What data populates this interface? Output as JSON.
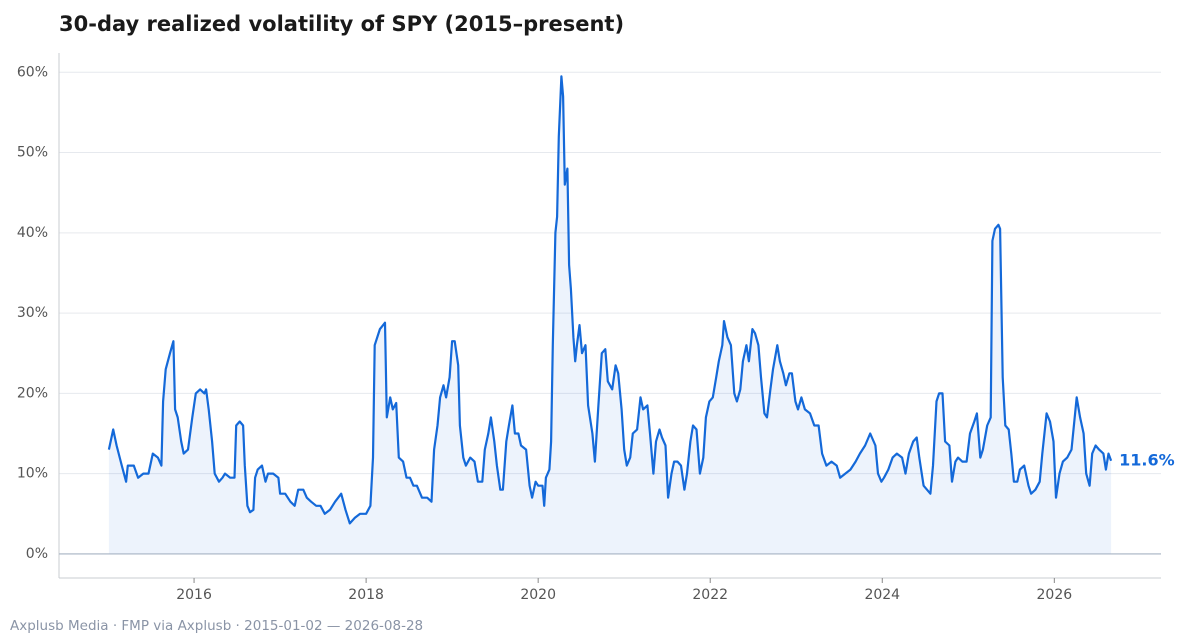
{
  "chart_data": {
    "type": "line",
    "title": "30-day realized volatility of SPY (2015–present)",
    "footer": "Axplusb Media · FMP via Axplusb · 2015-01-02 — 2026-08-28",
    "color": "#1469d9",
    "area": true,
    "grid": true,
    "xlim": [
      2014.43,
      2027.24
    ],
    "xticks": [
      2016,
      2018,
      2020,
      2022,
      2024,
      2026
    ],
    "ylim": [
      -3,
      62.4
    ],
    "yticks": [
      {
        "value": 0,
        "label": "0%"
      },
      {
        "value": 10,
        "label": "10%"
      },
      {
        "value": 20,
        "label": "20%"
      },
      {
        "value": 30,
        "label": "30%"
      },
      {
        "value": 40,
        "label": "40%"
      },
      {
        "value": 50,
        "label": "50%"
      },
      {
        "value": 60,
        "label": "60%"
      }
    ],
    "x": [
      2015.01,
      2015.06,
      2015.1,
      2015.16,
      2015.21,
      2015.23,
      2015.3,
      2015.35,
      2015.41,
      2015.47,
      2015.52,
      2015.58,
      2015.62,
      2015.64,
      2015.67,
      2015.72,
      2015.76,
      2015.78,
      2015.81,
      2015.85,
      2015.88,
      2015.93,
      2015.98,
      2016.02,
      2016.07,
      2016.12,
      2016.14,
      2016.17,
      2016.21,
      2016.24,
      2016.29,
      2016.33,
      2016.36,
      2016.42,
      2016.47,
      2016.49,
      2016.53,
      2016.57,
      2016.59,
      2016.62,
      2016.65,
      2016.69,
      2016.71,
      2016.74,
      2016.79,
      2016.83,
      2016.86,
      2016.92,
      2016.98,
      2017.0,
      2017.06,
      2017.12,
      2017.17,
      2017.21,
      2017.27,
      2017.31,
      2017.36,
      2017.42,
      2017.47,
      2017.52,
      2017.58,
      2017.64,
      2017.71,
      2017.76,
      2017.81,
      2017.87,
      2017.93,
      2018.0,
      2018.05,
      2018.08,
      2018.1,
      2018.16,
      2018.22,
      2018.24,
      2018.28,
      2018.31,
      2018.35,
      2018.38,
      2018.43,
      2018.47,
      2018.51,
      2018.55,
      2018.59,
      2018.65,
      2018.71,
      2018.76,
      2018.79,
      2018.83,
      2018.86,
      2018.9,
      2018.93,
      2018.97,
      2019.0,
      2019.03,
      2019.07,
      2019.09,
      2019.13,
      2019.16,
      2019.21,
      2019.26,
      2019.3,
      2019.35,
      2019.38,
      2019.42,
      2019.45,
      2019.49,
      2019.52,
      2019.56,
      2019.59,
      2019.63,
      2019.66,
      2019.7,
      2019.73,
      2019.77,
      2019.8,
      2019.86,
      2019.9,
      2019.93,
      2019.97,
      2020.0,
      2020.05,
      2020.07,
      2020.09,
      2020.13,
      2020.15,
      2020.17,
      2020.2,
      2020.22,
      2020.24,
      2020.27,
      2020.29,
      2020.31,
      2020.34,
      2020.36,
      2020.38,
      2020.41,
      2020.43,
      2020.45,
      2020.48,
      2020.51,
      2020.55,
      2020.58,
      2020.63,
      2020.66,
      2020.7,
      2020.74,
      2020.78,
      2020.81,
      2020.86,
      2020.9,
      2020.93,
      2020.97,
      2021.0,
      2021.03,
      2021.07,
      2021.1,
      2021.15,
      2021.19,
      2021.22,
      2021.27,
      2021.3,
      2021.34,
      2021.37,
      2021.41,
      2021.44,
      2021.48,
      2021.51,
      2021.55,
      2021.58,
      2021.62,
      2021.66,
      2021.7,
      2021.73,
      2021.77,
      2021.8,
      2021.84,
      2021.88,
      2021.92,
      2021.95,
      2021.99,
      2022.03,
      2022.07,
      2022.1,
      2022.14,
      2022.16,
      2022.2,
      2022.24,
      2022.28,
      2022.31,
      2022.35,
      2022.38,
      2022.42,
      2022.45,
      2022.49,
      2022.52,
      2022.56,
      2022.59,
      2022.63,
      2022.66,
      2022.7,
      2022.73,
      2022.78,
      2022.81,
      2022.85,
      2022.88,
      2022.92,
      2022.95,
      2022.99,
      2023.02,
      2023.06,
      2023.1,
      2023.16,
      2023.21,
      2023.26,
      2023.3,
      2023.35,
      2023.41,
      2023.47,
      2023.51,
      2023.57,
      2023.63,
      2023.69,
      2023.74,
      2023.8,
      2023.86,
      2023.92,
      2023.95,
      2023.99,
      2024.02,
      2024.07,
      2024.12,
      2024.17,
      2024.23,
      2024.27,
      2024.31,
      2024.36,
      2024.4,
      2024.43,
      2024.48,
      2024.52,
      2024.56,
      2024.59,
      2024.63,
      2024.66,
      2024.7,
      2024.73,
      2024.78,
      2024.81,
      2024.85,
      2024.88,
      2024.93,
      2024.98,
      2025.02,
      2025.07,
      2025.1,
      2025.14,
      2025.17,
      2025.22,
      2025.26,
      2025.28,
      2025.31,
      2025.35,
      2025.37,
      2025.4,
      2025.43,
      2025.47,
      2025.5,
      2025.53,
      2025.57,
      2025.6,
      2025.65,
      2025.7,
      2025.73,
      2025.78,
      2025.83,
      2025.86,
      2025.91,
      2025.95,
      2025.99,
      2026.02,
      2026.06,
      2026.1,
      2026.15,
      2026.2,
      2026.26,
      2026.3,
      2026.34,
      2026.37,
      2026.41,
      2026.44,
      2026.48,
      2026.52,
      2026.57,
      2026.6,
      2026.63,
      2026.66
    ],
    "values": [
      13,
      15.5,
      13.5,
      11,
      9,
      11,
      11,
      9.5,
      10,
      10,
      12.5,
      12,
      11,
      19,
      23,
      25,
      26.5,
      18,
      17,
      14,
      12.5,
      13,
      17,
      20,
      20.5,
      20,
      20.5,
      18,
      14,
      10,
      9,
      9.5,
      10,
      9.5,
      9.5,
      16,
      16.5,
      16,
      11,
      6,
      5.2,
      5.5,
      9.5,
      10.5,
      11,
      9,
      10,
      10,
      9.5,
      7.5,
      7.5,
      6.5,
      6,
      8,
      8,
      7,
      6.5,
      6,
      6,
      5,
      5.5,
      6.5,
      7.5,
      5.5,
      3.8,
      4.5,
      5,
      5,
      6,
      12,
      26,
      28,
      28.8,
      17,
      19.5,
      18,
      18.8,
      12,
      11.5,
      9.5,
      9.5,
      8.5,
      8.5,
      7,
      7,
      6.5,
      13,
      16,
      19.5,
      21,
      19.5,
      22,
      26.5,
      26.5,
      23.5,
      16,
      12,
      11,
      12,
      11.5,
      9,
      9,
      13,
      15,
      17,
      14,
      11,
      8,
      8,
      14,
      16,
      18.5,
      15,
      15,
      13.5,
      13,
      8.5,
      7,
      9,
      8.5,
      8.5,
      6,
      9.5,
      10.5,
      14,
      26,
      40,
      42,
      52,
      59.5,
      57,
      46,
      48,
      36,
      33,
      27,
      24,
      26,
      28.5,
      25,
      26,
      18.5,
      15,
      11.5,
      18.5,
      25,
      25.5,
      21.5,
      20.5,
      23.5,
      22.5,
      18,
      13,
      11,
      12,
      15,
      15.5,
      19.5,
      18,
      18.5,
      15,
      10,
      14,
      15.5,
      14.5,
      13.5,
      7,
      10,
      11.5,
      11.5,
      11,
      8,
      10,
      14,
      16,
      15.5,
      10,
      12,
      17,
      19,
      19.5,
      22,
      24,
      26,
      29,
      27,
      26,
      20,
      19,
      20.5,
      24,
      26,
      24,
      28,
      27.5,
      26,
      22,
      17.5,
      17,
      20.5,
      23,
      26,
      24,
      22.5,
      21,
      22.5,
      22.5,
      19,
      18,
      19.5,
      18,
      17.5,
      16,
      16,
      12.5,
      11,
      11.5,
      11,
      9.5,
      10,
      10.5,
      11.5,
      12.5,
      13.5,
      15,
      13.5,
      10,
      9,
      9.5,
      10.5,
      12,
      12.5,
      12,
      10,
      12.5,
      14,
      14.5,
      12,
      8.5,
      8,
      7.5,
      11,
      19,
      20,
      20,
      14,
      13.5,
      9,
      11.5,
      12,
      11.5,
      11.5,
      15,
      16.5,
      17.5,
      12,
      13,
      16,
      17,
      39,
      40.5,
      41,
      40.5,
      22,
      16,
      15.5,
      12.5,
      9,
      9,
      10.5,
      11,
      8.5,
      7.5,
      8,
      9,
      12.5,
      17.5,
      16.5,
      14,
      7,
      10,
      11.5,
      12,
      13,
      19.5,
      17,
      15,
      10,
      8.5,
      12.5,
      13.5,
      13,
      12.5,
      10.5,
      12.5,
      11.6
    ],
    "value_labels": [
      null,
      null,
      null,
      null,
      null,
      null,
      null,
      null,
      null,
      null,
      null,
      null,
      null,
      null,
      null,
      null,
      null,
      null,
      null,
      null,
      null,
      null,
      null,
      null,
      null,
      null,
      null,
      null,
      null,
      null,
      null,
      null,
      null,
      null,
      null,
      null,
      null,
      null,
      null,
      null,
      null,
      null,
      null,
      null,
      null,
      null,
      null,
      null,
      null,
      null,
      null,
      null,
      null,
      null,
      null,
      null,
      null,
      null,
      null,
      null,
      null,
      null,
      null,
      null,
      null,
      null,
      null,
      null,
      null,
      null,
      null,
      null,
      null,
      null,
      null,
      null,
      null,
      null,
      null,
      null,
      null,
      null,
      null,
      null,
      null,
      null,
      null,
      null,
      null,
      null,
      null,
      null,
      null,
      null,
      null,
      null,
      null,
      null,
      null,
      null,
      null,
      null,
      null,
      null,
      null,
      null,
      null,
      null,
      null,
      null,
      null,
      null,
      null,
      null,
      null,
      null,
      null,
      null,
      null,
      null,
      null,
      null,
      null,
      null,
      null,
      null,
      null,
      null,
      null,
      null,
      null,
      null,
      null,
      null,
      null,
      null,
      null,
      null,
      null,
      null,
      null,
      null,
      null,
      null,
      null,
      null,
      null,
      null,
      null,
      null,
      null,
      null,
      null,
      null,
      null,
      null,
      null,
      null,
      null,
      null,
      null,
      null,
      null,
      null,
      null,
      null,
      null,
      null,
      null,
      null,
      null,
      null,
      null,
      null,
      null,
      null,
      null,
      null,
      null,
      null,
      null,
      null,
      null,
      null,
      null,
      null,
      null,
      null,
      null,
      null,
      null,
      null,
      null,
      null,
      null,
      null,
      null,
      null,
      null,
      null,
      null,
      null,
      null,
      null,
      null,
      null,
      null,
      null,
      null,
      null,
      null,
      null,
      null,
      null,
      null,
      null,
      null,
      null,
      null,
      null,
      null,
      null,
      null,
      null,
      null,
      null,
      null,
      null,
      null,
      null,
      null,
      null,
      null,
      null,
      null,
      null,
      null,
      null,
      null,
      null,
      null,
      null,
      null,
      null,
      null,
      null,
      null,
      null,
      null,
      null,
      null,
      null,
      null,
      null,
      null,
      null,
      null,
      null,
      null,
      null,
      null,
      null,
      null,
      null,
      null,
      null,
      null,
      null,
      null,
      null,
      null,
      null,
      null,
      null,
      null,
      null,
      null,
      null,
      null,
      null,
      null,
      null,
      null,
      null,
      null,
      null,
      null,
      null,
      null,
      null,
      null,
      null,
      null,
      null,
      null,
      "11.6%"
    ]
  }
}
